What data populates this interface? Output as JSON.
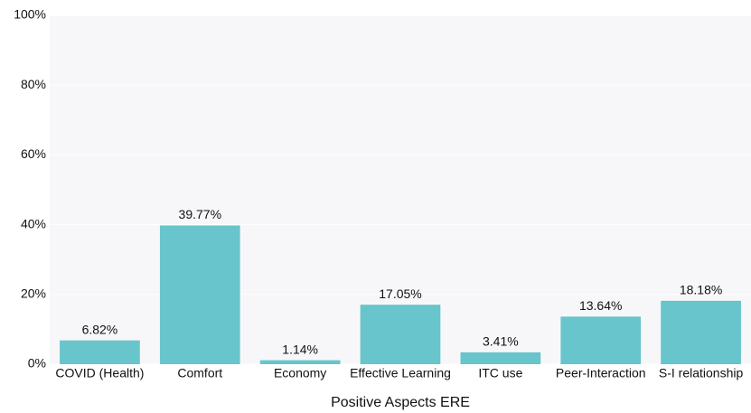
{
  "chart_data": {
    "type": "bar",
    "x_label": "Positive Aspects ERE",
    "categories": [
      "COVID (Health)",
      "Comfort",
      "Economy",
      "Effective Learning",
      "ITC use",
      "Peer-Interaction",
      "S-I relationship"
    ],
    "values": [
      6.82,
      39.77,
      1.14,
      17.05,
      3.41,
      13.64,
      18.18
    ],
    "value_labels": [
      "6.82%",
      "39.77%",
      "1.14%",
      "17.05%",
      "3.41%",
      "13.64%",
      "18.18%"
    ],
    "color": "#67c5cb",
    "ylim": [
      0,
      100
    ],
    "yticks": [
      {
        "value": 0,
        "label": "0%"
      },
      {
        "value": 20,
        "label": "20%"
      },
      {
        "value": 40,
        "label": "40%"
      },
      {
        "value": 60,
        "label": "60%"
      },
      {
        "value": 80,
        "label": "80%"
      },
      {
        "value": 100,
        "label": "100%"
      }
    ],
    "grid": true
  }
}
